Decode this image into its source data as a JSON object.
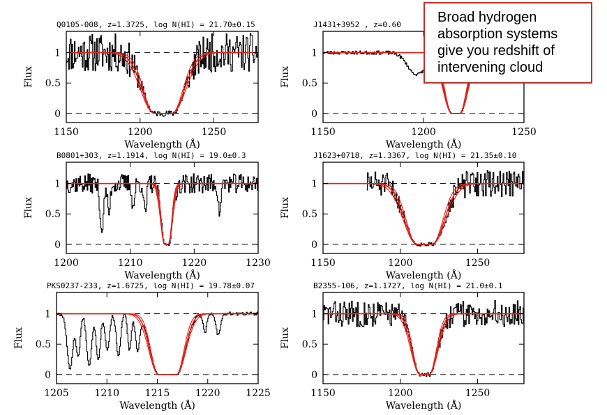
{
  "callout": {
    "lines": [
      "Broad hydrogen",
      "absorption systems",
      "give you redshift of",
      "intervening cloud"
    ],
    "border_color": "#c0302a"
  },
  "colors": {
    "data": "#000000",
    "model": "#e0221a"
  },
  "chart_data": [
    {
      "type": "line",
      "title": "Q0105-008, z=1.3725, log N(HI) = 21.70±0.15",
      "xlabel": "Wavelength (Å)",
      "ylabel": "Flux",
      "xlim": [
        1150,
        1280
      ],
      "ylim": [
        -0.15,
        1.35
      ],
      "xticks": [
        1150,
        1200,
        1250
      ],
      "yticks": [
        0,
        0.5,
        1
      ],
      "dashed_levels": [
        0,
        1
      ],
      "center": 1215.67,
      "halfwidth": 13,
      "core": 6,
      "noise": 0.32,
      "data_start": 1150,
      "absorbers": [],
      "seed": 11,
      "series": [
        {
          "name": "",
          "style": "data"
        },
        {
          "name": "",
          "style": "fit"
        }
      ]
    },
    {
      "type": "line",
      "title": "J1431+3952  , z=0.60",
      "xlabel": "Wavelength (Å)",
      "ylabel": "Flux",
      "xlim": [
        1150,
        1250
      ],
      "ylim": [
        -0.15,
        1.35
      ],
      "xticks": [
        1150,
        1200,
        1250
      ],
      "yticks": [
        0,
        0.5,
        1
      ],
      "dashed_levels": [
        0,
        1
      ],
      "center": 1216,
      "halfwidth": 6,
      "core": 2,
      "noise": 0.03,
      "data_start": 1150,
      "absorbers": [
        {
          "x": 1196,
          "w": 6,
          "d": 0.35
        },
        {
          "x": 1205,
          "w": 5,
          "d": 0.25
        }
      ],
      "seed": 23,
      "series": [
        {
          "name": "",
          "style": "data"
        },
        {
          "name": "",
          "style": "fit"
        }
      ]
    },
    {
      "type": "line",
      "title": "B0801+303, z=1.1914, log N(HI) = 19.0±0.3",
      "xlabel": "Wavelength (Å)",
      "ylabel": "Flux",
      "xlim": [
        1200,
        1230
      ],
      "ylim": [
        -0.15,
        1.35
      ],
      "xticks": [
        1200,
        1210,
        1220,
        1230
      ],
      "yticks": [
        0,
        0.5,
        1
      ],
      "dashed_levels": [
        0,
        1
      ],
      "center": 1215.67,
      "halfwidth": 0.9,
      "core": 0.3,
      "noise": 0.16,
      "data_start": 1200,
      "absorbers": [
        {
          "x": 1205.5,
          "w": 0.4,
          "d": 0.8
        },
        {
          "x": 1206.6,
          "w": 0.3,
          "d": 0.5
        },
        {
          "x": 1210.4,
          "w": 0.3,
          "d": 0.4
        },
        {
          "x": 1212.3,
          "w": 0.3,
          "d": 0.5
        },
        {
          "x": 1223.9,
          "w": 0.3,
          "d": 0.5
        }
      ],
      "seed": 37,
      "series": [
        {
          "name": "",
          "style": "data"
        },
        {
          "name": "",
          "style": "fit"
        }
      ]
    },
    {
      "type": "line",
      "title": "J1623+0718, z=1.3367, log N(HI) = 21.35±0.10",
      "xlabel": "Wavelength (Å)",
      "ylabel": "Flux",
      "xlim": [
        1150,
        1280
      ],
      "ylim": [
        -0.15,
        1.35
      ],
      "xticks": [
        1150,
        1200,
        1250
      ],
      "yticks": [
        0,
        0.5,
        1
      ],
      "dashed_levels": [
        0,
        1
      ],
      "center": 1215.67,
      "halfwidth": 12,
      "core": 5,
      "noise": 0.22,
      "data_start": 1178,
      "absorbers": [],
      "seed": 51,
      "series": [
        {
          "name": "",
          "style": "data"
        },
        {
          "name": "",
          "style": "fit"
        }
      ]
    },
    {
      "type": "line",
      "title": "PKS0237-233, z=1.6725, log N(HI) = 19.78±0.07",
      "xlabel": "Wavelength (Å)",
      "ylabel": "Flux",
      "xlim": [
        1205,
        1225
      ],
      "ylim": [
        -0.15,
        1.35
      ],
      "xticks": [
        1205,
        1210,
        1215,
        1220,
        1225
      ],
      "yticks": [
        0,
        0.5,
        1
      ],
      "dashed_levels": [
        0,
        1
      ],
      "center": 1216,
      "halfwidth": 1.3,
      "core": 0.9,
      "noise": 0.03,
      "data_start": 1205,
      "absorbers": [
        {
          "x": 1206.3,
          "w": 0.4,
          "d": 0.92
        },
        {
          "x": 1207.1,
          "w": 0.3,
          "d": 0.7
        },
        {
          "x": 1208.2,
          "w": 0.35,
          "d": 0.85
        },
        {
          "x": 1209.1,
          "w": 0.3,
          "d": 0.75
        },
        {
          "x": 1210.0,
          "w": 0.3,
          "d": 0.6
        },
        {
          "x": 1211.1,
          "w": 0.3,
          "d": 0.7
        },
        {
          "x": 1212.2,
          "w": 0.25,
          "d": 0.6
        },
        {
          "x": 1213.0,
          "w": 0.3,
          "d": 0.6
        },
        {
          "x": 1219.7,
          "w": 0.25,
          "d": 0.3
        },
        {
          "x": 1221.0,
          "w": 0.3,
          "d": 0.35
        }
      ],
      "seed": 67,
      "series": [
        {
          "name": "",
          "style": "data"
        },
        {
          "name": "",
          "style": "fit"
        }
      ]
    },
    {
      "type": "line",
      "title": "B2355-106, z=1.1727, log N(HI) = 21.0±0.1",
      "xlabel": "Wavelength (Å)",
      "ylabel": "Flux",
      "xlim": [
        1150,
        1280
      ],
      "ylim": [
        -0.15,
        1.35
      ],
      "xticks": [
        1150,
        1200,
        1250
      ],
      "yticks": [
        0,
        0.5,
        1
      ],
      "dashed_levels": [
        0,
        1
      ],
      "center": 1215.67,
      "halfwidth": 8,
      "core": 3,
      "noise": 0.22,
      "data_start": 1150,
      "absorbers": [],
      "seed": 83,
      "series": [
        {
          "name": "",
          "style": "data"
        },
        {
          "name": "",
          "style": "fit"
        }
      ]
    }
  ]
}
